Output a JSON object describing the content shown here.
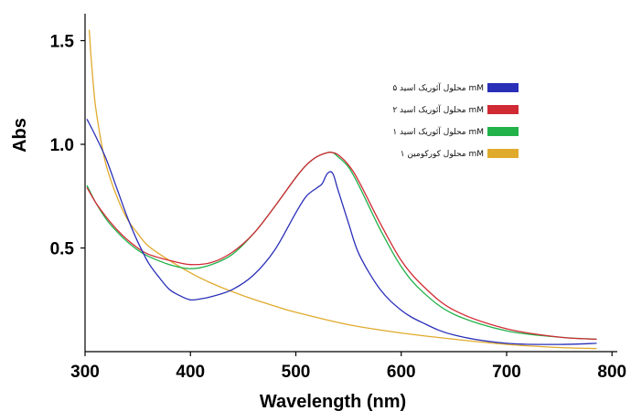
{
  "chart_data": {
    "type": "line",
    "title": "",
    "xlabel": "Wavelength (nm)",
    "ylabel": "Abs",
    "xlim": [
      300,
      800
    ],
    "ylim": [
      0,
      1.63
    ],
    "xticks": [
      300,
      400,
      500,
      600,
      700,
      800
    ],
    "xtick_labels": [
      "300",
      "400",
      "500",
      "600",
      "700",
      "800"
    ],
    "yticks": [
      0.5,
      1.0,
      1.5
    ],
    "ytick_labels": [
      "0.5",
      "1.0",
      "1.5"
    ],
    "grid": false,
    "legend_position": "top-right",
    "series": [
      {
        "name": "محلول آئوریک اسید ۵ mM",
        "color": "#2a2fb8",
        "x": [
          302,
          310,
          320,
          330,
          340,
          350,
          360,
          370,
          380,
          390,
          400,
          410,
          420,
          440,
          460,
          480,
          500,
          510,
          520,
          525,
          530,
          535,
          540,
          550,
          560,
          580,
          600,
          620,
          650,
          700,
          750,
          785
        ],
        "y": [
          1.12,
          1.04,
          0.93,
          0.79,
          0.65,
          0.53,
          0.43,
          0.36,
          0.3,
          0.27,
          0.25,
          0.255,
          0.265,
          0.3,
          0.37,
          0.49,
          0.67,
          0.75,
          0.79,
          0.81,
          0.86,
          0.86,
          0.78,
          0.62,
          0.47,
          0.3,
          0.2,
          0.14,
          0.08,
          0.04,
          0.035,
          0.04
        ]
      },
      {
        "name": "محلول آئوریک اسید ۲ mM",
        "color": "#d02a34",
        "x": [
          302,
          310,
          320,
          330,
          340,
          350,
          360,
          380,
          400,
          420,
          440,
          460,
          480,
          500,
          510,
          520,
          530,
          535,
          540,
          550,
          560,
          580,
          600,
          620,
          650,
          700,
          750,
          785
        ],
        "y": [
          0.79,
          0.72,
          0.65,
          0.59,
          0.54,
          0.5,
          0.47,
          0.44,
          0.42,
          0.43,
          0.48,
          0.57,
          0.7,
          0.84,
          0.9,
          0.94,
          0.96,
          0.96,
          0.95,
          0.9,
          0.82,
          0.62,
          0.44,
          0.32,
          0.2,
          0.11,
          0.07,
          0.06
        ]
      },
      {
        "name": "محلول آئوریک اسید ۱ mM",
        "color": "#21b24a",
        "x": [
          302,
          310,
          320,
          330,
          340,
          350,
          360,
          380,
          400,
          420,
          440,
          460,
          480,
          500,
          510,
          520,
          530,
          535,
          540,
          550,
          560,
          580,
          600,
          620,
          650,
          700,
          750,
          785
        ],
        "y": [
          0.8,
          0.72,
          0.64,
          0.58,
          0.53,
          0.49,
          0.46,
          0.42,
          0.4,
          0.42,
          0.47,
          0.57,
          0.7,
          0.84,
          0.9,
          0.94,
          0.96,
          0.96,
          0.94,
          0.89,
          0.8,
          0.59,
          0.41,
          0.29,
          0.18,
          0.1,
          0.07,
          0.06
        ]
      },
      {
        "name": "محلول کورکومین ۱ mM",
        "color": "#e0aa2c",
        "x": [
          304,
          306,
          308,
          310,
          315,
          320,
          330,
          340,
          350,
          360,
          380,
          400,
          420,
          450,
          480,
          500,
          550,
          600,
          650,
          700,
          750,
          785
        ],
        "y": [
          1.55,
          1.4,
          1.28,
          1.18,
          1.02,
          0.9,
          0.75,
          0.64,
          0.57,
          0.51,
          0.44,
          0.38,
          0.33,
          0.27,
          0.22,
          0.19,
          0.13,
          0.09,
          0.06,
          0.035,
          0.02,
          0.015
        ]
      }
    ]
  }
}
